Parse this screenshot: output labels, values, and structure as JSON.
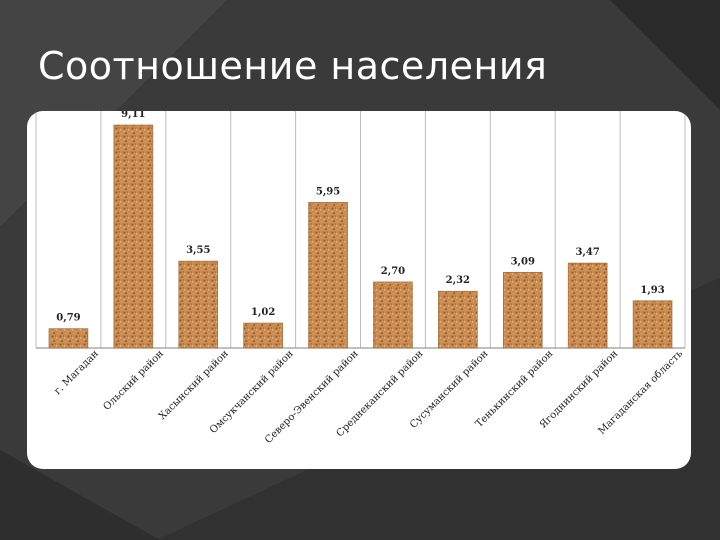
{
  "slide": {
    "title": "Соотношение населения"
  },
  "colors": {
    "background": "#3a3a3a",
    "bar_fill": "#c98a4f",
    "bar_dark": "#8a5528",
    "bar_light": "#e7b887",
    "grid": "#bcbcbc"
  },
  "chart_data": {
    "type": "bar",
    "title": "",
    "xlabel": "",
    "ylabel": "",
    "ylim": [
      0,
      9.6
    ],
    "grid": "vertical separators between categories",
    "categories": [
      "г. Магадан",
      "Ольский район",
      "Хасынский район",
      "Омсукчанский район",
      "Северо-Эвенский район",
      "Среднеканский район",
      "Сусуманский район",
      "Тенькинский район",
      "Ягоднинский район",
      "Магаданская область"
    ],
    "values": [
      0.79,
      9.11,
      3.55,
      1.02,
      5.95,
      2.7,
      2.32,
      3.09,
      3.47,
      1.93
    ],
    "value_labels": [
      "0,79",
      "9,11",
      "3,55",
      "1,02",
      "5,95",
      "2,70",
      "2,32",
      "3,09",
      "3,47",
      "1,93"
    ]
  }
}
